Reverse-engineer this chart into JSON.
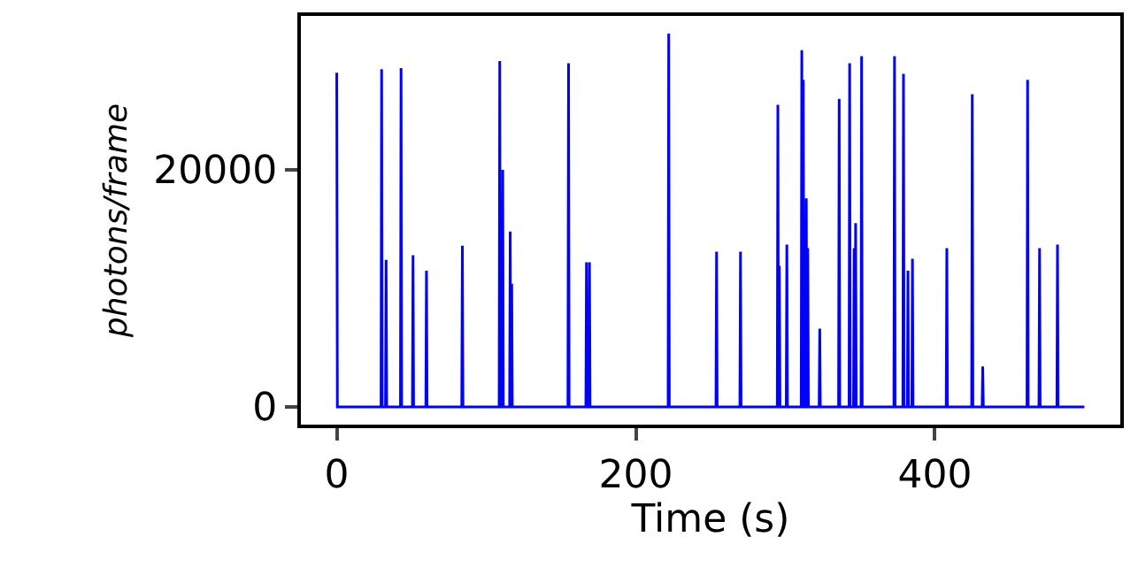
{
  "chart_data": {
    "type": "line",
    "xlabel": "Time (s)",
    "ylabel": "photons/frame",
    "xlim": [
      -24,
      524
    ],
    "ylim": [
      -1500,
      33000
    ],
    "xticks": [
      0,
      200,
      400
    ],
    "yticks": [
      0,
      20000
    ],
    "grid": false,
    "marker": "none",
    "line_style": "solid",
    "series": [
      {
        "color": "#0000ff",
        "x": [
          0,
          0.4,
          29.6,
          30,
          30.4,
          32.6,
          33,
          33.4,
          42.6,
          43,
          43.4,
          50.6,
          51,
          51.4,
          59.6,
          60,
          60.4,
          83.6,
          84,
          84.4,
          108.6,
          109,
          109.4,
          110.6,
          111,
          111.4,
          115.6,
          116,
          116.4,
          116.6,
          117,
          117.4,
          154.6,
          155,
          155.4,
          166.6,
          167,
          167.4,
          168.6,
          169,
          169.4,
          221.6,
          222,
          222.4,
          253.6,
          254,
          254.4,
          269.6,
          270,
          270.4,
          294.6,
          295,
          295.4,
          295.6,
          296,
          296.4,
          300.6,
          301,
          301.4,
          310.6,
          311,
          311.4,
          311.6,
          312,
          312.4,
          313.6,
          314,
          314.4,
          314.6,
          315,
          315.4,
          322.6,
          323,
          323.4,
          335.6,
          336,
          336.4,
          342.6,
          343,
          343.4,
          345.6,
          346,
          346.4,
          346.6,
          347,
          347.4,
          350.6,
          351,
          351.4,
          372.6,
          373,
          373.4,
          378.6,
          379,
          379.4,
          381.6,
          382,
          382.4,
          384.6,
          385,
          385.4,
          407.6,
          408,
          408.4,
          424.6,
          425,
          425.4,
          431.6,
          432,
          432.4,
          461.6,
          462,
          462.4,
          469.6,
          470,
          470.4,
          481.6,
          482,
          482.4,
          500
        ],
        "values": [
          28200,
          0,
          0,
          28500,
          0,
          0,
          12400,
          0,
          0,
          28600,
          0,
          0,
          12800,
          0,
          0,
          11500,
          0,
          0,
          13600,
          0,
          0,
          29200,
          0,
          0,
          20000,
          0,
          0,
          14800,
          0,
          0,
          10400,
          0,
          0,
          29000,
          0,
          0,
          12200,
          0,
          0,
          12200,
          0,
          0,
          31500,
          0,
          0,
          13100,
          0,
          0,
          13100,
          0,
          0,
          25500,
          0,
          0,
          11900,
          0,
          0,
          13700,
          0,
          0,
          30100,
          0,
          0,
          27600,
          0,
          0,
          17600,
          0,
          0,
          13400,
          0,
          0,
          6600,
          0,
          0,
          26000,
          0,
          0,
          29000,
          0,
          0,
          13400,
          0,
          0,
          15500,
          0,
          0,
          29600,
          0,
          0,
          29600,
          0,
          0,
          28100,
          0,
          0,
          11500,
          0,
          0,
          12500,
          0,
          0,
          13400,
          0,
          0,
          26400,
          0,
          0,
          3400,
          0,
          0,
          27600,
          0,
          0,
          13400,
          0,
          0,
          13700,
          0,
          0
        ]
      }
    ]
  }
}
